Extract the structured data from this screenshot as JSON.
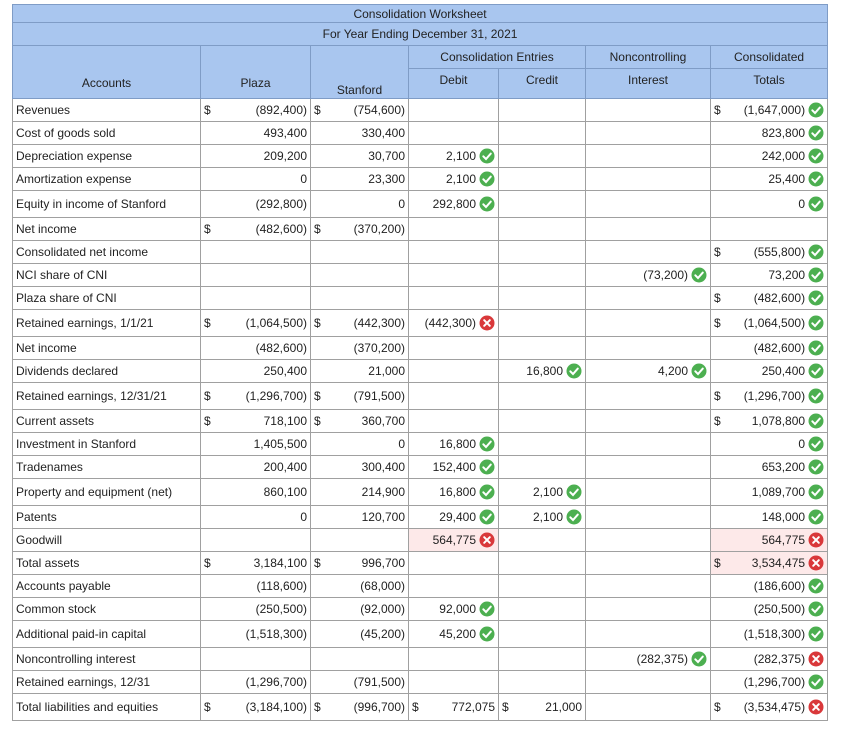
{
  "header": {
    "title": "Consolidation Worksheet",
    "subtitle": "For Year Ending December 31, 2021",
    "entries_label": "Consolidation Entries",
    "nci_label": "Noncontrolling",
    "consolidated_label": "Consolidated",
    "columns": [
      "Accounts",
      "Plaza",
      "Stanford",
      "Debit",
      "Credit",
      "Interest",
      "Totals"
    ]
  },
  "table": {
    "rows": [
      {
        "account": "Revenues",
        "cells": [
          {
            "prefix": "$",
            "value": "(892,400)"
          },
          {
            "prefix": "$",
            "value": "(754,600)"
          },
          null,
          null,
          null,
          {
            "prefix": "$",
            "value": "(1,647,000)",
            "mark": "check"
          }
        ]
      },
      {
        "account": "Cost of goods sold",
        "cells": [
          {
            "value": "493,400"
          },
          {
            "value": "330,400"
          },
          null,
          null,
          null,
          {
            "value": "823,800",
            "mark": "check"
          }
        ]
      },
      {
        "account": "Depreciation expense",
        "cells": [
          {
            "value": "209,200"
          },
          {
            "value": "30,700"
          },
          {
            "value": "2,100",
            "mark": "check"
          },
          null,
          null,
          {
            "value": "242,000",
            "mark": "check"
          }
        ]
      },
      {
        "account": "Amortization expense",
        "cells": [
          {
            "value": "0"
          },
          {
            "value": "23,300"
          },
          {
            "value": "2,100",
            "mark": "check"
          },
          null,
          null,
          {
            "value": "25,400",
            "mark": "check"
          }
        ]
      },
      {
        "account": "Equity in income of Stanford",
        "cells": [
          {
            "value": "(292,800)"
          },
          {
            "value": "0"
          },
          {
            "value": "292,800",
            "mark": "check"
          },
          null,
          null,
          {
            "value": "0",
            "mark": "check"
          }
        ]
      },
      {
        "account": "Net income",
        "cells": [
          {
            "prefix": "$",
            "value": "(482,600)"
          },
          {
            "prefix": "$",
            "value": "(370,200)"
          },
          null,
          null,
          null,
          null
        ]
      },
      {
        "account": "Consolidated net income",
        "cells": [
          null,
          null,
          null,
          null,
          null,
          {
            "prefix": "$",
            "value": "(555,800)",
            "mark": "check"
          }
        ]
      },
      {
        "account": "NCI share of CNI",
        "cells": [
          null,
          null,
          null,
          null,
          {
            "value": "(73,200)",
            "mark": "check"
          },
          {
            "value": "73,200",
            "mark": "check"
          }
        ]
      },
      {
        "account": "Plaza share of CNI",
        "cells": [
          null,
          null,
          null,
          null,
          null,
          {
            "prefix": "$",
            "value": "(482,600)",
            "mark": "check"
          }
        ]
      },
      {
        "account": "Retained earnings, 1/1/21",
        "cells": [
          {
            "prefix": "$",
            "value": "(1,064,500)"
          },
          {
            "prefix": "$",
            "value": "(442,300)"
          },
          {
            "value": "(442,300)",
            "mark": "cross"
          },
          null,
          null,
          {
            "prefix": "$",
            "value": "(1,064,500)",
            "mark": "check"
          }
        ]
      },
      {
        "account": "Net income",
        "cells": [
          {
            "value": "(482,600)"
          },
          {
            "value": "(370,200)"
          },
          null,
          null,
          null,
          {
            "value": "(482,600)",
            "mark": "check"
          }
        ]
      },
      {
        "account": "Dividends declared",
        "cells": [
          {
            "value": "250,400"
          },
          {
            "value": "21,000"
          },
          null,
          {
            "value": "16,800",
            "mark": "check"
          },
          {
            "value": "4,200",
            "mark": "check"
          },
          {
            "value": "250,400",
            "mark": "check"
          }
        ]
      },
      {
        "account": "Retained earnings, 12/31/21",
        "cells": [
          {
            "prefix": "$",
            "value": "(1,296,700)"
          },
          {
            "prefix": "$",
            "value": "(791,500)"
          },
          null,
          null,
          null,
          {
            "prefix": "$",
            "value": "(1,296,700)",
            "mark": "check"
          }
        ]
      },
      {
        "account": "Current assets",
        "cells": [
          {
            "prefix": "$",
            "value": "718,100"
          },
          {
            "prefix": "$",
            "value": "360,700"
          },
          null,
          null,
          null,
          {
            "prefix": "$",
            "value": "1,078,800",
            "mark": "check"
          }
        ]
      },
      {
        "account": "Investment in Stanford",
        "cells": [
          {
            "value": "1,405,500"
          },
          {
            "value": "0"
          },
          {
            "value": "16,800",
            "mark": "check"
          },
          null,
          null,
          {
            "value": "0",
            "mark": "check"
          }
        ]
      },
      {
        "account": "Tradenames",
        "cells": [
          {
            "value": "200,400"
          },
          {
            "value": "300,400"
          },
          {
            "value": "152,400",
            "mark": "check"
          },
          null,
          null,
          {
            "value": "653,200",
            "mark": "check"
          }
        ]
      },
      {
        "account": "Property and equipment (net)",
        "cells": [
          {
            "value": "860,100"
          },
          {
            "value": "214,900"
          },
          {
            "value": "16,800",
            "mark": "check"
          },
          {
            "value": "2,100",
            "mark": "check"
          },
          null,
          {
            "value": "1,089,700",
            "mark": "check"
          }
        ]
      },
      {
        "account": "Patents",
        "cells": [
          {
            "value": "0"
          },
          {
            "value": "120,700"
          },
          {
            "value": "29,400",
            "mark": "check"
          },
          {
            "value": "2,100",
            "mark": "check"
          },
          null,
          {
            "value": "148,000",
            "mark": "check"
          }
        ]
      },
      {
        "account": "Goodwill",
        "cells": [
          null,
          null,
          {
            "value": "564,775",
            "mark": "cross",
            "highlight": true
          },
          null,
          null,
          {
            "value": "564,775",
            "mark": "cross",
            "highlight": true
          }
        ]
      },
      {
        "account": "Total assets",
        "cells": [
          {
            "prefix": "$",
            "value": "3,184,100"
          },
          {
            "prefix": "$",
            "value": "996,700"
          },
          null,
          null,
          null,
          {
            "prefix": "$",
            "value": "3,534,475",
            "mark": "cross",
            "highlight": true
          }
        ]
      },
      {
        "account": "Accounts payable",
        "cells": [
          {
            "value": "(118,600)"
          },
          {
            "value": "(68,000)"
          },
          null,
          null,
          null,
          {
            "value": "(186,600)",
            "mark": "check"
          }
        ]
      },
      {
        "account": "Common stock",
        "cells": [
          {
            "value": "(250,500)"
          },
          {
            "value": "(92,000)"
          },
          {
            "value": "92,000",
            "mark": "check"
          },
          null,
          null,
          {
            "value": "(250,500)",
            "mark": "check"
          }
        ]
      },
      {
        "account": "Additional paid-in capital",
        "cells": [
          {
            "value": "(1,518,300)"
          },
          {
            "value": "(45,200)"
          },
          {
            "value": "45,200",
            "mark": "check"
          },
          null,
          null,
          {
            "value": "(1,518,300)",
            "mark": "check"
          }
        ]
      },
      {
        "account": "Noncontrolling interest",
        "cells": [
          null,
          null,
          null,
          null,
          {
            "value": "(282,375)",
            "mark": "check"
          },
          {
            "value": "(282,375)",
            "mark": "cross"
          }
        ]
      },
      {
        "account": "Retained earnings, 12/31",
        "cells": [
          {
            "value": "(1,296,700)"
          },
          {
            "value": "(791,500)"
          },
          null,
          null,
          null,
          {
            "value": "(1,296,700)",
            "mark": "check"
          }
        ]
      },
      {
        "account": "Total liabilities and equities",
        "cells": [
          {
            "prefix": "$",
            "value": "(3,184,100)"
          },
          {
            "prefix": "$",
            "value": "(996,700)"
          },
          {
            "prefix": "$",
            "value": "772,075"
          },
          {
            "prefix": "$",
            "value": "21,000"
          },
          null,
          {
            "prefix": "$",
            "value": "(3,534,475)",
            "mark": "cross"
          }
        ]
      }
    ]
  }
}
